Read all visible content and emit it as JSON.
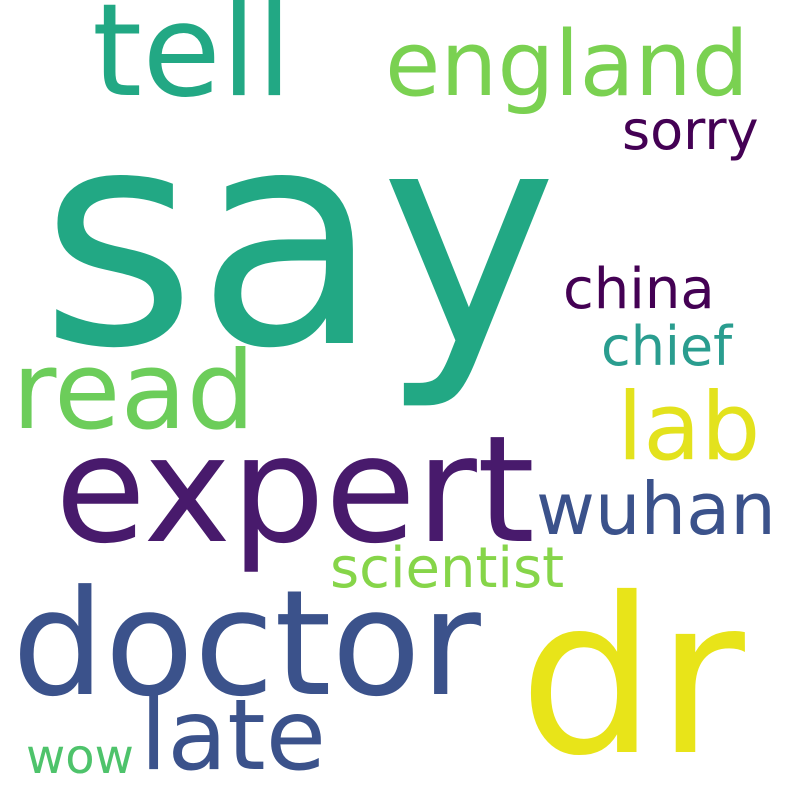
{
  "words": [
    {
      "text": "say",
      "color": "#22a884"
    },
    {
      "text": "tell",
      "color": "#22a884"
    },
    {
      "text": "england",
      "color": "#7ad151"
    },
    {
      "text": "sorry",
      "color": "#440154"
    },
    {
      "text": "china",
      "color": "#440154"
    },
    {
      "text": "chief",
      "color": "#2a9d8f"
    },
    {
      "text": "read",
      "color": "#6ccd5a"
    },
    {
      "text": "lab",
      "color": "#e3e21d"
    },
    {
      "text": "expert",
      "color": "#481a6c"
    },
    {
      "text": "wuhan",
      "color": "#3b528b"
    },
    {
      "text": "scientist",
      "color": "#86d549"
    },
    {
      "text": "doctor",
      "color": "#3b528b"
    },
    {
      "text": "dr",
      "color": "#e8e419"
    },
    {
      "text": "late",
      "color": "#3b528b"
    },
    {
      "text": "wow",
      "color": "#4ec36b"
    }
  ]
}
